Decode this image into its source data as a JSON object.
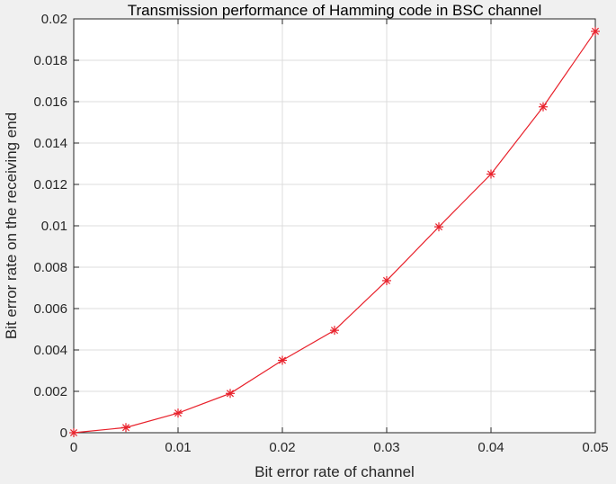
{
  "chart_data": {
    "type": "line",
    "title": "Transmission performance of Hamming code in BSC channel",
    "xlabel": "Bit error rate of channel",
    "ylabel": "Bit error rate on the receiving end",
    "xlim": [
      0,
      0.05
    ],
    "ylim": [
      0,
      0.02
    ],
    "xticks": [
      0,
      0.01,
      0.02,
      0.03,
      0.04,
      0.05
    ],
    "xtick_labels": [
      "0",
      "0.01",
      "0.02",
      "0.03",
      "0.04",
      "0.05"
    ],
    "yticks": [
      0,
      0.002,
      0.004,
      0.006,
      0.008,
      0.01,
      0.012,
      0.014,
      0.016,
      0.018,
      0.02
    ],
    "ytick_labels": [
      "0",
      "0.002",
      "0.004",
      "0.006",
      "0.008",
      "0.01",
      "0.012",
      "0.014",
      "0.016",
      "0.018",
      "0.02"
    ],
    "grid": true,
    "series": [
      {
        "x": [
          0,
          0.005,
          0.01,
          0.015,
          0.02,
          0.025,
          0.03,
          0.035,
          0.04,
          0.045,
          0.05
        ],
        "y": [
          0,
          0.00025,
          0.00095,
          0.0019,
          0.0035,
          0.00495,
          0.00735,
          0.00995,
          0.0125,
          0.01575,
          0.0194
        ],
        "color": "#e8212b",
        "marker": "asterisk"
      }
    ]
  }
}
